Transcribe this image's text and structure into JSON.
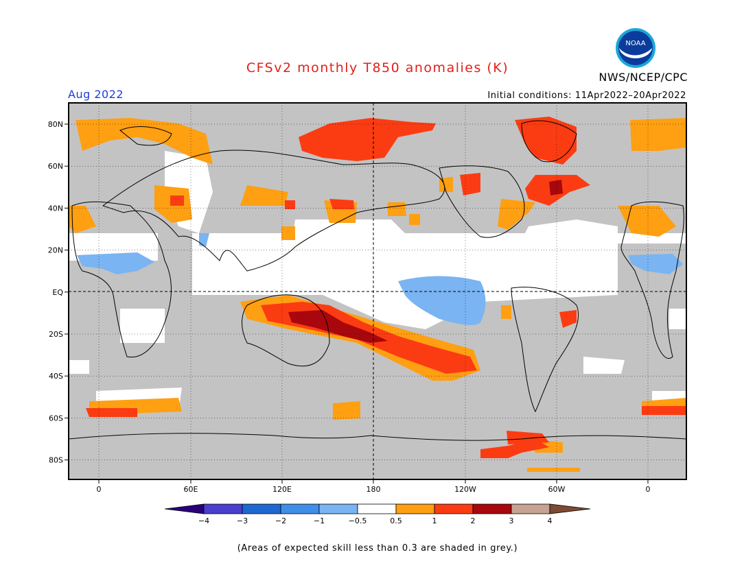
{
  "header": {
    "title": "CFSv2 monthly T850 anomalies (K)",
    "agency": "NWS/NCEP/CPC",
    "month": "Aug 2022",
    "initial_conditions": "Initial conditions: 11Apr2022–20Apr2022"
  },
  "logo": {
    "text": "NOAA",
    "icon": "noaa-logo-icon"
  },
  "axes": {
    "lat_labels": [
      "80N",
      "60N",
      "40N",
      "20N",
      "EQ",
      "20S",
      "40S",
      "60S",
      "80S"
    ],
    "lon_labels": [
      "0",
      "60E",
      "120E",
      "180",
      "120W",
      "60W",
      "0"
    ]
  },
  "colorbar": {
    "ticks": [
      "−4",
      "−3",
      "−2",
      "−1",
      "−0.5",
      "0.5",
      "1",
      "2",
      "3",
      "4"
    ],
    "colors": {
      "lt_-4": "#2a007a",
      "-4_-3": "#4a3ed0",
      "-3_-2": "#1e68d2",
      "-2_-1": "#3f8ee8",
      "-1_-0.5": "#7ab4f2",
      "-0.5_0.5": "#ffffff",
      "0.5_1": "#ff9f12",
      "1_2": "#fb3c12",
      "2_3": "#a8070e",
      "3_4": "#c7a191",
      "gt_4": "#7d4a35"
    },
    "skill_grey": "#c3c3c3"
  },
  "note": "(Areas of expected skill less than 0.3 are shaded in grey.)"
}
